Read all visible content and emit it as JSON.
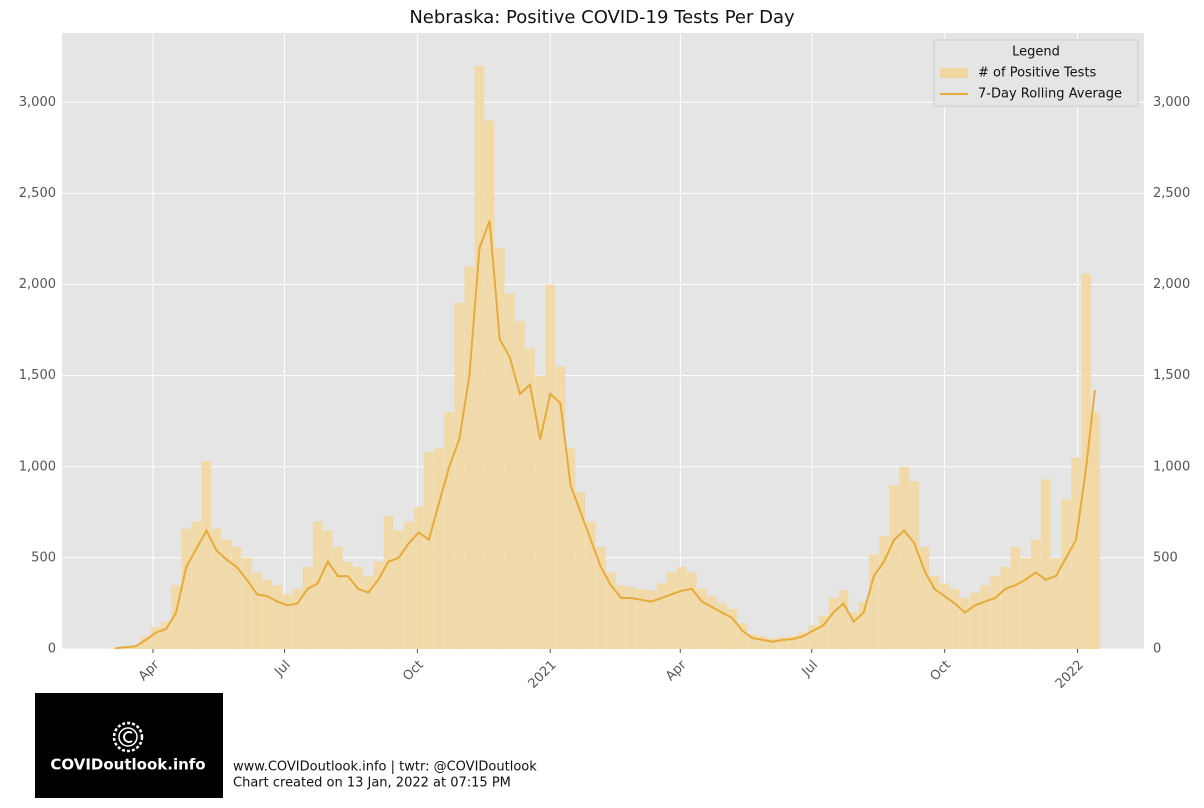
{
  "chart_data": {
    "type": "bar",
    "title": "Nebraska: Positive COVID-19 Tests Per Day",
    "x": [
      "2020-03-06",
      "2020-03-13",
      "2020-03-20",
      "2020-03-27",
      "2020-04-03",
      "2020-04-10",
      "2020-04-17",
      "2020-04-24",
      "2020-05-01",
      "2020-05-08",
      "2020-05-15",
      "2020-05-22",
      "2020-05-29",
      "2020-06-05",
      "2020-06-12",
      "2020-06-19",
      "2020-06-26",
      "2020-07-03",
      "2020-07-10",
      "2020-07-17",
      "2020-07-24",
      "2020-07-31",
      "2020-08-07",
      "2020-08-14",
      "2020-08-21",
      "2020-08-28",
      "2020-09-04",
      "2020-09-11",
      "2020-09-18",
      "2020-09-25",
      "2020-10-02",
      "2020-10-09",
      "2020-10-16",
      "2020-10-23",
      "2020-10-30",
      "2020-11-06",
      "2020-11-13",
      "2020-11-20",
      "2020-11-27",
      "2020-12-04",
      "2020-12-11",
      "2020-12-18",
      "2020-12-25",
      "2021-01-01",
      "2021-01-08",
      "2021-01-15",
      "2021-01-22",
      "2021-01-29",
      "2021-02-05",
      "2021-02-12",
      "2021-02-19",
      "2021-02-26",
      "2021-03-05",
      "2021-03-12",
      "2021-03-19",
      "2021-03-26",
      "2021-04-02",
      "2021-04-09",
      "2021-04-16",
      "2021-04-23",
      "2021-04-30",
      "2021-05-07",
      "2021-05-14",
      "2021-05-21",
      "2021-05-28",
      "2021-06-04",
      "2021-06-11",
      "2021-06-18",
      "2021-06-25",
      "2021-07-02",
      "2021-07-09",
      "2021-07-16",
      "2021-07-23",
      "2021-07-30",
      "2021-08-06",
      "2021-08-13",
      "2021-08-20",
      "2021-08-27",
      "2021-09-03",
      "2021-09-10",
      "2021-09-17",
      "2021-09-24",
      "2021-10-01",
      "2021-10-08",
      "2021-10-15",
      "2021-10-22",
      "2021-10-29",
      "2021-11-05",
      "2021-11-12",
      "2021-11-19",
      "2021-11-26",
      "2021-12-03",
      "2021-12-10",
      "2021-12-17",
      "2021-12-24",
      "2021-12-31",
      "2022-01-07",
      "2022-01-13"
    ],
    "series": [
      {
        "name": "# of Positive Tests",
        "type": "bar",
        "color": "#f2d8a0",
        "values": [
          5,
          12,
          20,
          70,
          120,
          150,
          350,
          660,
          700,
          1030,
          660,
          600,
          560,
          500,
          420,
          380,
          350,
          300,
          330,
          450,
          700,
          650,
          560,
          480,
          450,
          400,
          480,
          730,
          650,
          700,
          780,
          1080,
          1100,
          1300,
          1900,
          2100,
          3200,
          2900,
          2200,
          1950,
          1800,
          1650,
          1500,
          2000,
          1550,
          1100,
          860,
          700,
          560,
          420,
          350,
          340,
          330,
          320,
          360,
          420,
          450,
          420,
          330,
          290,
          250,
          220,
          140,
          80,
          70,
          60,
          65,
          70,
          90,
          130,
          180,
          280,
          320,
          200,
          260,
          520,
          620,
          900,
          1000,
          920,
          560,
          400,
          360,
          330,
          280,
          310,
          350,
          400,
          450,
          560,
          500,
          600,
          930,
          500,
          820,
          1050,
          2060,
          1300
        ]
      },
      {
        "name": "7-Day Rolling Average",
        "type": "line",
        "color": "#e6ab3b",
        "values": [
          5,
          10,
          15,
          50,
          90,
          110,
          200,
          450,
          550,
          650,
          540,
          490,
          450,
          380,
          300,
          290,
          260,
          240,
          250,
          330,
          360,
          480,
          400,
          400,
          330,
          310,
          380,
          480,
          500,
          580,
          640,
          600,
          800,
          1000,
          1150,
          1500,
          2200,
          2350,
          1700,
          1600,
          1400,
          1450,
          1150,
          1400,
          1350,
          900,
          750,
          600,
          450,
          350,
          280,
          280,
          270,
          260,
          280,
          300,
          320,
          330,
          260,
          230,
          200,
          170,
          100,
          60,
          50,
          40,
          50,
          55,
          70,
          100,
          130,
          200,
          250,
          150,
          200,
          400,
          480,
          600,
          650,
          580,
          430,
          330,
          290,
          250,
          200,
          240,
          260,
          280,
          330,
          350,
          380,
          420,
          380,
          400,
          500,
          600,
          1000,
          1420
        ]
      }
    ],
    "xlim": [
      "2020-01-29",
      "2022-02-16"
    ],
    "xticks": [
      {
        "value": "2020-04-01",
        "label": "Apr"
      },
      {
        "value": "2020-07-01",
        "label": "Jul"
      },
      {
        "value": "2020-10-01",
        "label": "Oct"
      },
      {
        "value": "2021-01-01",
        "label": "2021"
      },
      {
        "value": "2021-04-01",
        "label": "Apr"
      },
      {
        "value": "2021-07-01",
        "label": "Jul"
      },
      {
        "value": "2021-10-01",
        "label": "Oct"
      },
      {
        "value": "2022-01-01",
        "label": "2022"
      }
    ],
    "ylim": [
      0,
      3380
    ],
    "yticks": [
      0,
      500,
      {
        "value": 1000,
        "label": "1,000"
      },
      {
        "value": 1500,
        "label": "1,500"
      },
      {
        "value": 2000,
        "label": "2,000"
      },
      {
        "value": 2500,
        "label": "2,500"
      },
      {
        "value": 3000,
        "label": "3,000"
      }
    ],
    "grid": true,
    "legend": "upper right",
    "legend_title": "Legend"
  },
  "footer": {
    "logo": "COVIDoutlook.info",
    "line1": "www.COVIDoutlook.info | twtr: @COVIDoutlook",
    "line2": "Chart created on 13 Jan, 2022 at 07:15 PM"
  }
}
